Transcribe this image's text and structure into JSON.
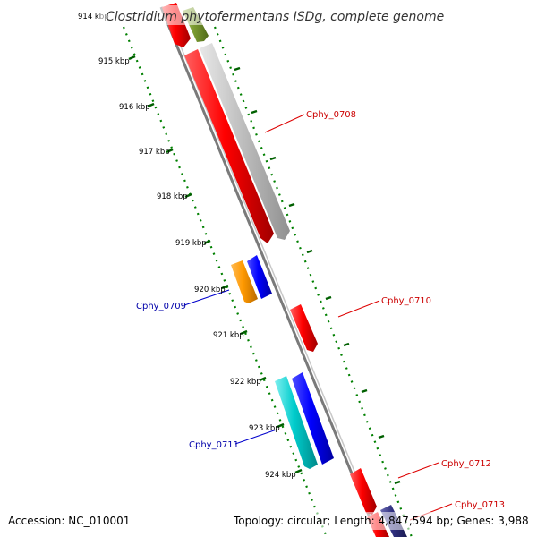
{
  "title": "Clostridium phytofermentans ISDg, complete genome",
  "accession": "Accession: NC_010001",
  "topology": "Topology: circular; Length: 4,847,594 bp; Genes: 3,988",
  "ticks": [
    {
      "id": "914",
      "label": "914 kbp"
    },
    {
      "id": "915",
      "label": "915 kbp"
    },
    {
      "id": "916",
      "label": "916 kbp"
    },
    {
      "id": "917",
      "label": "917 kbp"
    },
    {
      "id": "918",
      "label": "918 kbp"
    },
    {
      "id": "919",
      "label": "919 kbp"
    },
    {
      "id": "920",
      "label": "920 kbp"
    },
    {
      "id": "921",
      "label": "921 kbp"
    },
    {
      "id": "922",
      "label": "922 kbp"
    },
    {
      "id": "923",
      "label": "923 kbp"
    },
    {
      "id": "924",
      "label": "924 kbp"
    }
  ],
  "gene_labels": {
    "cphy_0708": "Cphy_0708",
    "cphy_0709": "Cphy_0709",
    "cphy_0710": "Cphy_0710",
    "cphy_0711": "Cphy_0711",
    "cphy_0712": "Cphy_0712",
    "cphy_0713": "Cphy_0713"
  },
  "colors": {
    "forward_cds": "#ff0000",
    "forward_other": "#c0c0c0",
    "reverse_cds": "#0000ff",
    "reverse_orange": "#ff9900",
    "reverse_cyan": "#00cccc",
    "olive": "#7a9a30",
    "navy": "#303080",
    "backbone": "#808080",
    "gc_ticks": "#008000",
    "label_forward": "#cc0000",
    "label_reverse": "#0000aa"
  }
}
